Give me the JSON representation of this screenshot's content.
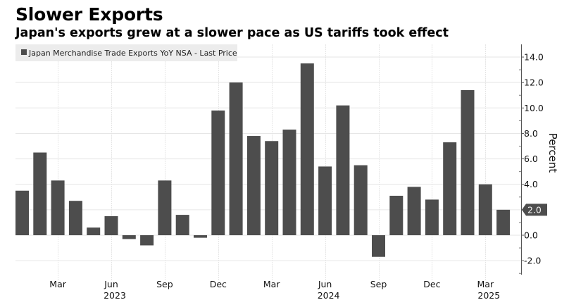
{
  "header": {
    "title": "Slower Exports",
    "subtitle": "Japan's exports grew at a slower pace as US tariffs took effect"
  },
  "colors": {
    "bar": "#4d4d4d",
    "legend_bg": "#ececec",
    "grid": "#e6e6e6",
    "badge": "#4d4d4d"
  },
  "chart_data": {
    "type": "bar",
    "title": "Slower Exports",
    "subtitle": "Japan's exports grew at a slower pace as US tariffs took effect",
    "xlabel": "",
    "ylabel": "Percent",
    "legend": {
      "entries": [
        "Japan Merchandise Trade Exports YoY NSA - Last Price"
      ],
      "placement": "top-left"
    },
    "categories": [
      "2023-01",
      "2023-02",
      "2023-03",
      "2023-04",
      "2023-05",
      "2023-06",
      "2023-07",
      "2023-08",
      "2023-09",
      "2023-10",
      "2023-11",
      "2023-12",
      "2024-01",
      "2024-02",
      "2024-03",
      "2024-04",
      "2024-05",
      "2024-06",
      "2024-07",
      "2024-08",
      "2024-09",
      "2024-10",
      "2024-11",
      "2024-12",
      "2025-01",
      "2025-02",
      "2025-03",
      "2025-04"
    ],
    "series": [
      {
        "name": "Japan Merchandise Trade Exports YoY NSA - Last Price",
        "values": [
          3.5,
          6.5,
          4.3,
          2.7,
          0.6,
          1.5,
          -0.3,
          -0.8,
          4.3,
          1.6,
          -0.2,
          9.8,
          12.0,
          7.8,
          7.4,
          8.3,
          13.5,
          5.4,
          10.2,
          5.5,
          -1.7,
          3.1,
          3.8,
          2.8,
          7.3,
          11.4,
          4.0,
          2.0
        ]
      }
    ],
    "ylim": [
      -3.0,
      15.0
    ],
    "y_ticks": [
      {
        "value": 14,
        "label": "14.0"
      },
      {
        "value": 12,
        "label": "12.0"
      },
      {
        "value": 10,
        "label": "10.0"
      },
      {
        "value": 8,
        "label": "8.0"
      },
      {
        "value": 6,
        "label": "6.0"
      },
      {
        "value": 4,
        "label": "4.0"
      },
      {
        "value": 2,
        "label": "2.0"
      },
      {
        "value": 0,
        "label": "0.0"
      },
      {
        "value": -2,
        "label": "-2.0"
      }
    ],
    "y_axis_side": "right",
    "x_ticks": [
      {
        "index": 2,
        "label": "Mar",
        "year": ""
      },
      {
        "index": 5,
        "label": "Jun",
        "year": "2023"
      },
      {
        "index": 8,
        "label": "Sep",
        "year": ""
      },
      {
        "index": 11,
        "label": "Dec",
        "year": ""
      },
      {
        "index": 14,
        "label": "Mar",
        "year": ""
      },
      {
        "index": 17,
        "label": "Jun",
        "year": "2024"
      },
      {
        "index": 20,
        "label": "Sep",
        "year": ""
      },
      {
        "index": 23,
        "label": "Dec",
        "year": ""
      },
      {
        "index": 26,
        "label": "Mar",
        "year": "2025"
      }
    ],
    "last_value_label": "2.0",
    "grid": true
  }
}
